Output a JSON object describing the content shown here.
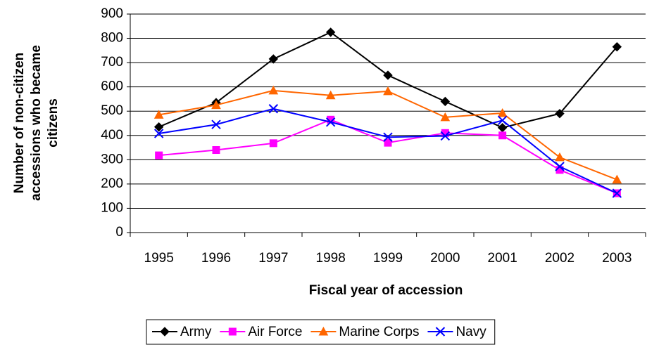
{
  "chart_data": {
    "type": "line",
    "xlabel": "Fiscal year of accession",
    "ylabel": [
      "Number of non-citizen",
      "accessions who became",
      "citizens"
    ],
    "categories": [
      "1995",
      "1996",
      "1997",
      "1998",
      "1999",
      "2000",
      "2001",
      "2002",
      "2003"
    ],
    "series": [
      {
        "name": "Army",
        "color": "#000000",
        "marker": "diamond",
        "values": [
          435,
          535,
          715,
          825,
          648,
          540,
          432,
          490,
          765
        ]
      },
      {
        "name": "Air Force",
        "color": "#ff00ff",
        "marker": "square",
        "values": [
          318,
          340,
          368,
          465,
          370,
          410,
          400,
          258,
          162
        ]
      },
      {
        "name": "Marine Corps",
        "color": "#ff6600",
        "marker": "triangle",
        "values": [
          485,
          525,
          585,
          565,
          582,
          475,
          492,
          310,
          218
        ]
      },
      {
        "name": "Navy",
        "color": "#0000ff",
        "marker": "x",
        "values": [
          408,
          445,
          510,
          455,
          393,
          398,
          462,
          272,
          162
        ]
      }
    ],
    "ylim": [
      0,
      900
    ],
    "yticks": [
      0,
      100,
      200,
      300,
      400,
      500,
      600,
      700,
      800,
      900
    ],
    "grid": true,
    "legend": "bottom"
  }
}
